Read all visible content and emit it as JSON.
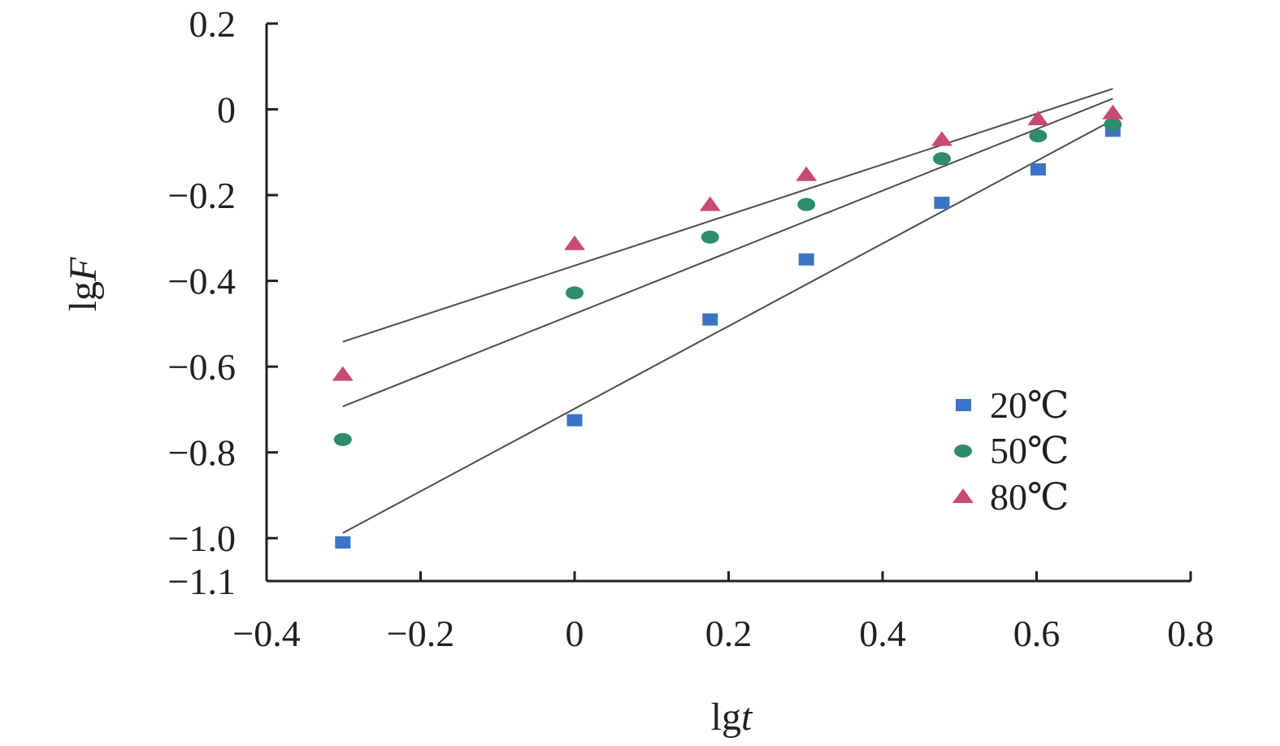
{
  "chart_data": {
    "type": "scatter",
    "title": "",
    "xlabel": {
      "prefix": "lg",
      "var": "t"
    },
    "ylabel": {
      "prefix": "lg",
      "var": "F"
    },
    "xlim": [
      -0.4,
      0.8
    ],
    "ylim": [
      -1.1,
      0.2
    ],
    "xticks": [
      -0.4,
      -0.2,
      0,
      0.2,
      0.4,
      0.6,
      0.8
    ],
    "xtick_labels": [
      "−0.4",
      "−0.2",
      "0",
      "0.2",
      "0.4",
      "0.6",
      "0.8"
    ],
    "yticks": [
      0.2,
      0,
      -0.2,
      -0.4,
      -0.6,
      -0.8,
      -1.0,
      -1.1
    ],
    "ytick_labels": [
      "0.2",
      "0",
      "−0.2",
      "−0.4",
      "−0.6",
      "−0.8",
      "−1.0",
      "−1.1"
    ],
    "grid": false,
    "legend_position": "right",
    "series": [
      {
        "name": "20℃",
        "marker": "square",
        "color": "#3b74c2",
        "x": [
          -0.301,
          0,
          0.176,
          0.301,
          0.477,
          0.602,
          0.699
        ],
        "y": [
          -1.01,
          -0.725,
          -0.49,
          -0.35,
          -0.218,
          -0.14,
          -0.05
        ],
        "fit": {
          "x": [
            -0.301,
            0.699
          ],
          "y": [
            -0.988,
            -0.025
          ]
        }
      },
      {
        "name": "50℃",
        "marker": "ellipse",
        "color": "#2e8b6e",
        "x": [
          -0.301,
          0,
          0.176,
          0.301,
          0.477,
          0.602,
          0.699
        ],
        "y": [
          -0.77,
          -0.428,
          -0.298,
          -0.222,
          -0.115,
          -0.062,
          -0.035
        ],
        "fit": {
          "x": [
            -0.301,
            0.699
          ],
          "y": [
            -0.693,
            0.025
          ]
        }
      },
      {
        "name": "80℃",
        "marker": "triangle",
        "color": "#c84a72",
        "x": [
          -0.301,
          0,
          0.176,
          0.301,
          0.477,
          0.602,
          0.699
        ],
        "y": [
          -0.618,
          -0.313,
          -0.222,
          -0.152,
          -0.07,
          -0.022,
          -0.008
        ],
        "fit": {
          "x": [
            -0.301,
            0.699
          ],
          "y": [
            -0.542,
            0.048
          ]
        }
      }
    ]
  }
}
